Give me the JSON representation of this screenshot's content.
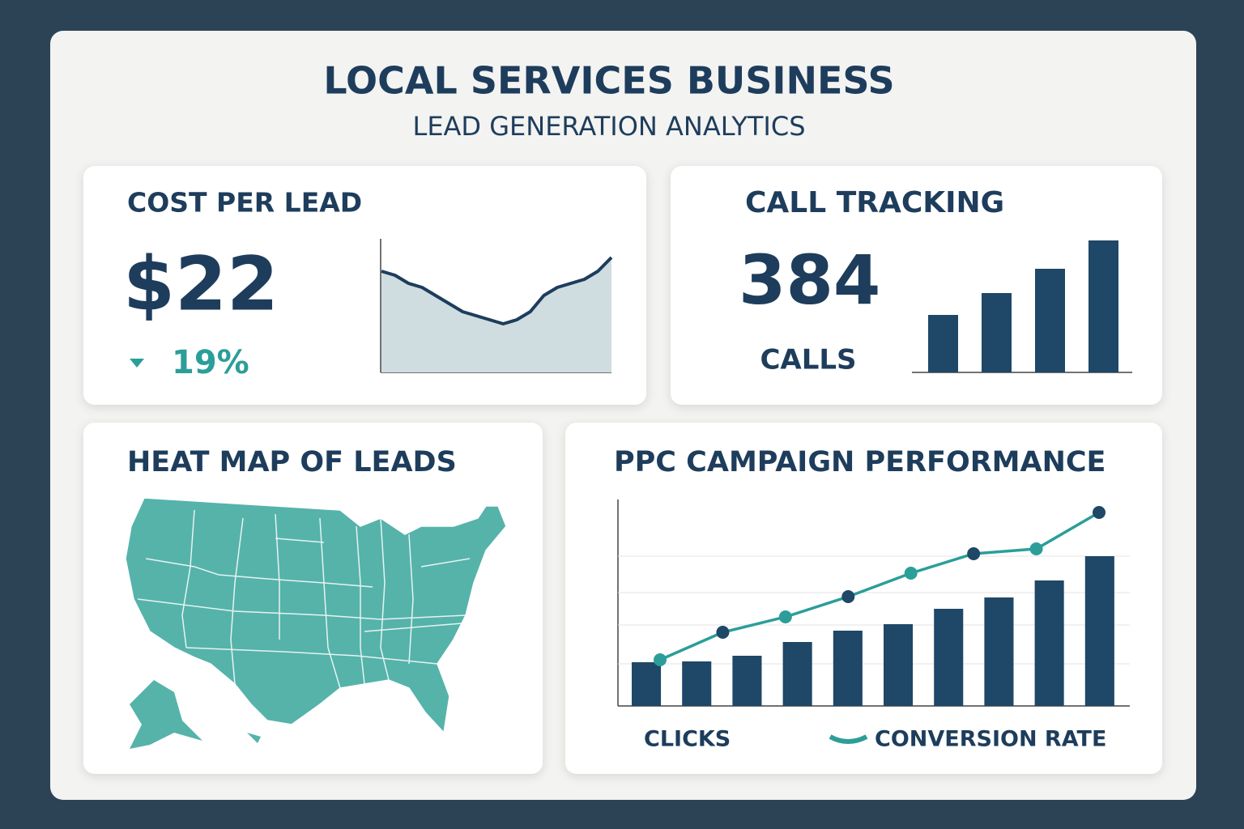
{
  "header": {
    "title": "LOCAL SERVICES BUSINESS",
    "subtitle": "LEAD GENERATION ANALYTICS"
  },
  "cost_per_lead": {
    "title": "COST PER LEAD",
    "value": "$22",
    "change": "19%",
    "trend": {
      "type": "area",
      "values": [
        125,
        120,
        110,
        105,
        95,
        85,
        75,
        70,
        65,
        60,
        65,
        75,
        95,
        105,
        110,
        115,
        125,
        142
      ],
      "ylim": [
        0,
        160
      ],
      "color": "#1e3d5c",
      "fill": "#cfdde0"
    }
  },
  "call_tracking": {
    "title": "CALL TRACKING",
    "value": "384",
    "unit": "CALLS",
    "bars": {
      "type": "bar",
      "values": [
        71,
        98,
        128,
        163
      ],
      "ylim": [
        0,
        180
      ],
      "color": "#1f4767"
    }
  },
  "heat_map": {
    "title": "HEAT MAP OF LEADS"
  },
  "ppc": {
    "title": "PPC CAMPAIGN PERFORMANCE",
    "type": "bar-line",
    "ylim": [
      0,
      255
    ],
    "grid": true,
    "series": [
      {
        "name": "CLICKS",
        "type": "bar",
        "color": "#1f4767",
        "values": [
          54,
          55,
          62,
          79,
          93,
          101,
          120,
          134,
          155,
          185
        ]
      },
      {
        "name": "CONVERSION RATE",
        "type": "line",
        "color": "#2b9e99",
        "values": [
          57,
          91,
          110,
          135,
          164,
          188,
          194,
          239
        ]
      }
    ]
  }
}
